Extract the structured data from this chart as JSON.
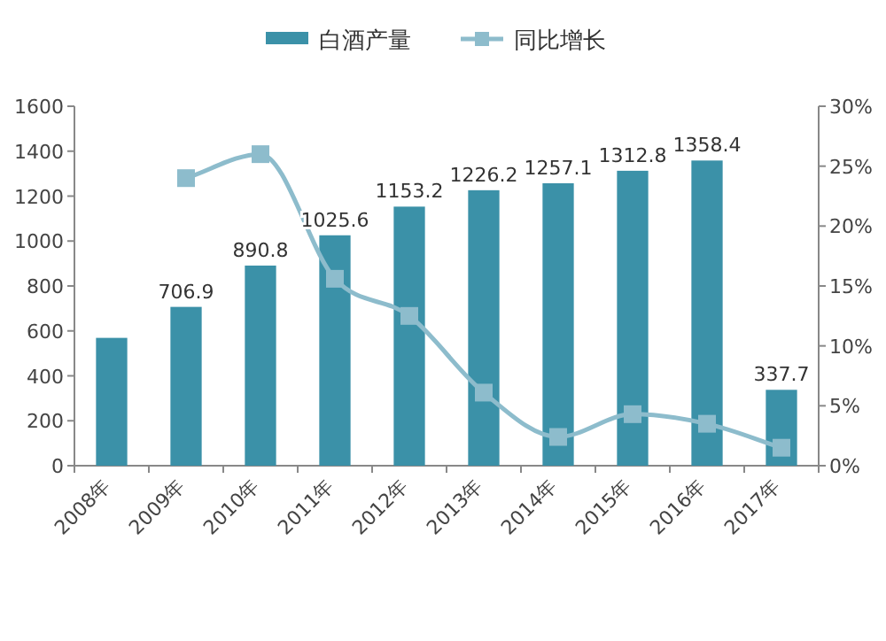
{
  "chart_data": {
    "type": "bar",
    "categories": [
      "2008年",
      "2009年",
      "2010年",
      "2011年",
      "2012年",
      "2013年",
      "2014年",
      "2015年",
      "2016年",
      "2017年"
    ],
    "series": [
      {
        "name": "白酒产量",
        "color": "#3b91a8",
        "values": [
          569,
          706.9,
          890.8,
          1025.6,
          1153.2,
          1226.2,
          1257.1,
          1312.8,
          1358.4,
          337.7
        ],
        "value_labels": [
          null,
          "706.9",
          "890.8",
          "1025.6",
          "1153.2",
          "1226.2",
          "1257.1",
          "1312.8",
          "1358.4",
          "337.7"
        ]
      },
      {
        "name": "同比增长",
        "type": "line",
        "axis": "y2",
        "color": "#8dbccc",
        "values": [
          null,
          24,
          26,
          15.6,
          12.5,
          6.1,
          2.4,
          4.3,
          3.5,
          1.5
        ]
      }
    ],
    "ylim": [
      0,
      1600
    ],
    "yticks": [
      0,
      200,
      400,
      600,
      800,
      1000,
      1200,
      1400,
      1600
    ],
    "y2lim": [
      0,
      30
    ],
    "y2ticks": [
      {
        "value": 0,
        "label": "0%"
      },
      {
        "value": 5,
        "label": "5%"
      },
      {
        "value": 10,
        "label": "10%"
      },
      {
        "value": 15,
        "label": "15%"
      },
      {
        "value": 20,
        "label": "20%"
      },
      {
        "value": 25,
        "label": "25%"
      },
      {
        "value": 30,
        "label": "30%"
      }
    ],
    "marker": "square",
    "legend": "top",
    "grid": false
  }
}
